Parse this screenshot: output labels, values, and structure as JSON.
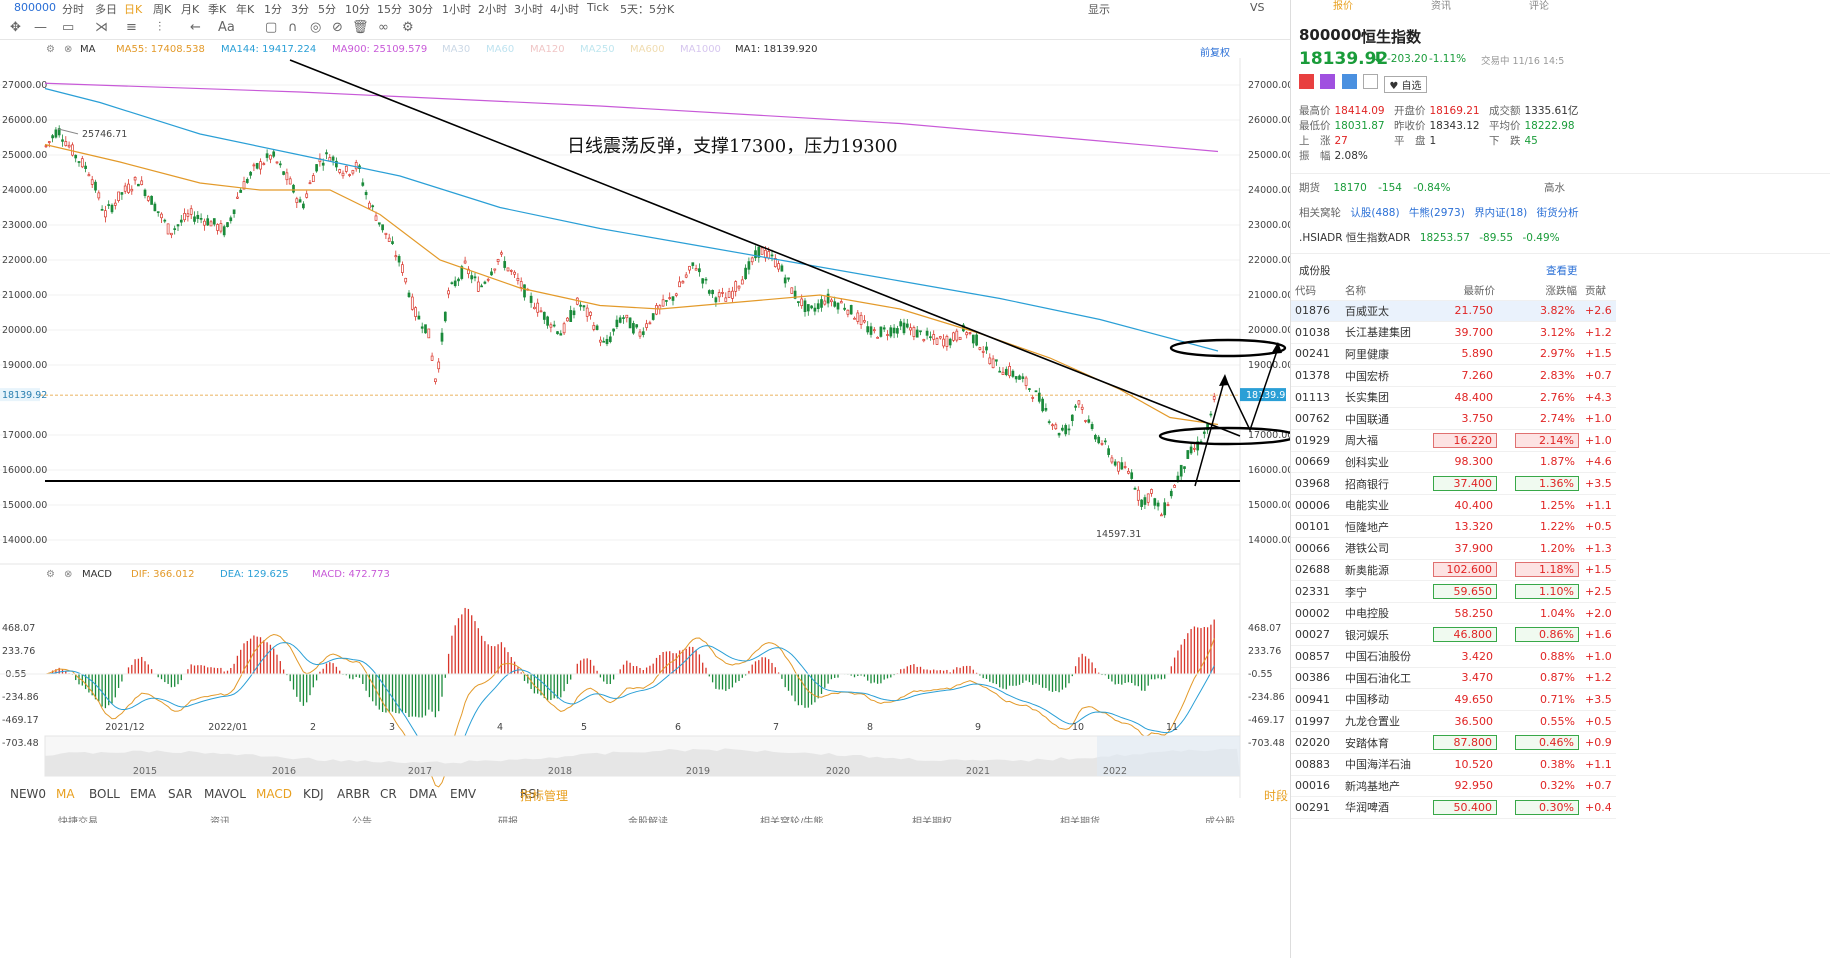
{
  "toolbar": {
    "code": "800000",
    "periods": [
      "分时",
      "多日",
      "日K",
      "周K",
      "月K",
      "季K",
      "年K",
      "1分",
      "3分",
      "5分",
      "10分",
      "15分",
      "30分",
      "1小时",
      "2小时",
      "3小时",
      "4小时",
      "Tick",
      "5天：5分K"
    ],
    "active": "日K",
    "right": [
      "显示",
      "VS"
    ]
  },
  "ma_bar": {
    "ma": "MA",
    "ma55": "MA55:  17408.538",
    "ma144": "MA144:  19417.224",
    "ma900": "MA900:  25109.579",
    "ma30": "MA30",
    "ma60": "MA60",
    "ma120": "MA120",
    "ma250": "MA250",
    "ma600": "MA600",
    "ma1000": "MA1000",
    "ma1": "MA1:  18139.920",
    "fq": "前复权"
  },
  "colors": {
    "ma55": "#e39a2a",
    "ma144": "#2a9fd6",
    "ma900": "#c85ad8",
    "up": "#d9352a",
    "down": "#1a8a3a",
    "dif": "#e39a2a",
    "dea": "#2a9fd6"
  },
  "annotation": "日线震荡反弹，支撑17300，压力19300",
  "price_axis": [
    "27000.00",
    "26000.00",
    "25000.00",
    "24000.00",
    "23000.00",
    "22000.00",
    "21000.00",
    "20000.00",
    "19000.00",
    "17000.00",
    "16000.00",
    "15000.00",
    "14000.00"
  ],
  "price_values": [
    27000,
    26000,
    25000,
    24000,
    23000,
    22000,
    21000,
    20000,
    19000,
    17000,
    16000,
    15000,
    14000
  ],
  "current_price": "18139.92",
  "high_label": "25746.71",
  "low_label": "14597.31",
  "macd_bar": {
    "label": "MACD",
    "dif": "DIF:  366.012",
    "dea": "DEA:  129.625",
    "macd": "MACD:  472.773"
  },
  "macd_axis": [
    "468.07",
    "233.76",
    "-0.55",
    "-234.86",
    "-469.17",
    "-703.48"
  ],
  "date_axis": [
    "2021/12",
    "2022/01",
    "2",
    "3",
    "4",
    "5",
    "6",
    "7",
    "8",
    "9",
    "10",
    "11"
  ],
  "overview_years": [
    "2015",
    "2016",
    "2017",
    "2018",
    "2019",
    "2020",
    "2021",
    "2022"
  ],
  "indicators": [
    "NEW0",
    "MA",
    "BOLL",
    "EMA",
    "SAR",
    "MAVOL",
    "MACD",
    "KDJ",
    "ARBR",
    "CR",
    "DMA",
    "EMV",
    "RSI",
    "指标管理"
  ],
  "ind_active": [
    "MA",
    "MACD"
  ],
  "ind_right": "时段",
  "bottom_tabs": [
    "快捷交易",
    "资讯",
    "公告",
    "研报",
    "金股解读",
    "相关窝轮/牛熊",
    "相关期权",
    "相关期货",
    "成分股"
  ],
  "panel": {
    "tabs": [
      "报价",
      "资讯",
      "评论"
    ],
    "code": "800000",
    "name": "恒生指数",
    "price": "18139.92",
    "arrow": "⬇",
    "change": "-203.20",
    "pct": "-1.11%",
    "status": "交易中 11/16 14:5",
    "tags": [
      "自选"
    ],
    "stats": [
      {
        "k": "最高价",
        "v": "18414.09",
        "c": "red"
      },
      {
        "k": "开盘价",
        "v": "18169.21",
        "c": "red"
      },
      {
        "k": "成交额",
        "v": "1335.61亿",
        "c": "dark"
      },
      {
        "k": "最低价",
        "v": "18031.87",
        "c": "grn"
      },
      {
        "k": "昨收价",
        "v": "18343.12",
        "c": "dark"
      },
      {
        "k": "平均价",
        "v": "18222.98",
        "c": "grn"
      },
      {
        "k": "上　涨",
        "v": "27",
        "c": "red"
      },
      {
        "k": "平　盘",
        "v": "1",
        "c": "dark"
      },
      {
        "k": "下　跌",
        "v": "45",
        "c": "grn"
      },
      {
        "k": "振　幅",
        "v": "2.08%",
        "c": "dark"
      }
    ],
    "futures": {
      "k": "期货",
      "v": "18170",
      "chg": "-154",
      "pct": "-0.84%",
      "right": "高水"
    },
    "related": {
      "k": "相关窝轮",
      "items": [
        "认股(488)",
        "牛熊(2973)",
        "界内证(18)",
        "街货分析"
      ]
    },
    "adr": {
      "k": ".HSIADR 恒生指数ADR",
      "v": "18253.57",
      "chg": "-89.55",
      "pct": "-0.49%"
    },
    "cons_title": "成份股",
    "cons_more": "查看更",
    "cons_headers": [
      "代码",
      "名称",
      "最新价",
      "涨跌幅",
      "贡献"
    ],
    "cons_rows": [
      [
        "01876",
        "百威亚太",
        "21.750",
        "3.82%",
        "+2.6",
        ""
      ],
      [
        "01038",
        "长江基建集团",
        "39.700",
        "3.12%",
        "+1.2",
        ""
      ],
      [
        "00241",
        "阿里健康",
        "5.890",
        "2.97%",
        "+1.5",
        ""
      ],
      [
        "01378",
        "中国宏桥",
        "7.260",
        "2.83%",
        "+0.7",
        ""
      ],
      [
        "01113",
        "长实集团",
        "48.400",
        "2.76%",
        "+4.3",
        ""
      ],
      [
        "00762",
        "中国联通",
        "3.750",
        "2.74%",
        "+1.0",
        ""
      ],
      [
        "01929",
        "周大福",
        "16.220",
        "2.14%",
        "+1.0",
        "r"
      ],
      [
        "00669",
        "创科实业",
        "98.300",
        "1.87%",
        "+4.6",
        ""
      ],
      [
        "03968",
        "招商银行",
        "37.400",
        "1.36%",
        "+3.5",
        "g"
      ],
      [
        "00006",
        "电能实业",
        "40.400",
        "1.25%",
        "+1.1",
        ""
      ],
      [
        "00101",
        "恒隆地产",
        "13.320",
        "1.22%",
        "+0.5",
        ""
      ],
      [
        "00066",
        "港铁公司",
        "37.900",
        "1.20%",
        "+1.3",
        ""
      ],
      [
        "02688",
        "新奥能源",
        "102.600",
        "1.18%",
        "+1.5",
        "r"
      ],
      [
        "02331",
        "李宁",
        "59.650",
        "1.10%",
        "+2.5",
        "g"
      ],
      [
        "00002",
        "中电控股",
        "58.250",
        "1.04%",
        "+2.0",
        ""
      ],
      [
        "00027",
        "银河娱乐",
        "46.800",
        "0.86%",
        "+1.6",
        "g"
      ],
      [
        "00857",
        "中国石油股份",
        "3.420",
        "0.88%",
        "+1.0",
        ""
      ],
      [
        "00386",
        "中国石油化工",
        "3.470",
        "0.87%",
        "+1.2",
        ""
      ],
      [
        "00941",
        "中国移动",
        "49.650",
        "0.71%",
        "+3.5",
        ""
      ],
      [
        "01997",
        "九龙仓置业",
        "36.500",
        "0.55%",
        "+0.5",
        ""
      ],
      [
        "02020",
        "安踏体育",
        "87.800",
        "0.46%",
        "+0.9",
        "g"
      ],
      [
        "00883",
        "中国海洋石油",
        "10.520",
        "0.38%",
        "+1.1",
        ""
      ],
      [
        "00016",
        "新鸿基地产",
        "92.950",
        "0.32%",
        "+0.7",
        ""
      ],
      [
        "00291",
        "华润啤酒",
        "50.400",
        "0.30%",
        "+0.4",
        "g"
      ]
    ]
  }
}
